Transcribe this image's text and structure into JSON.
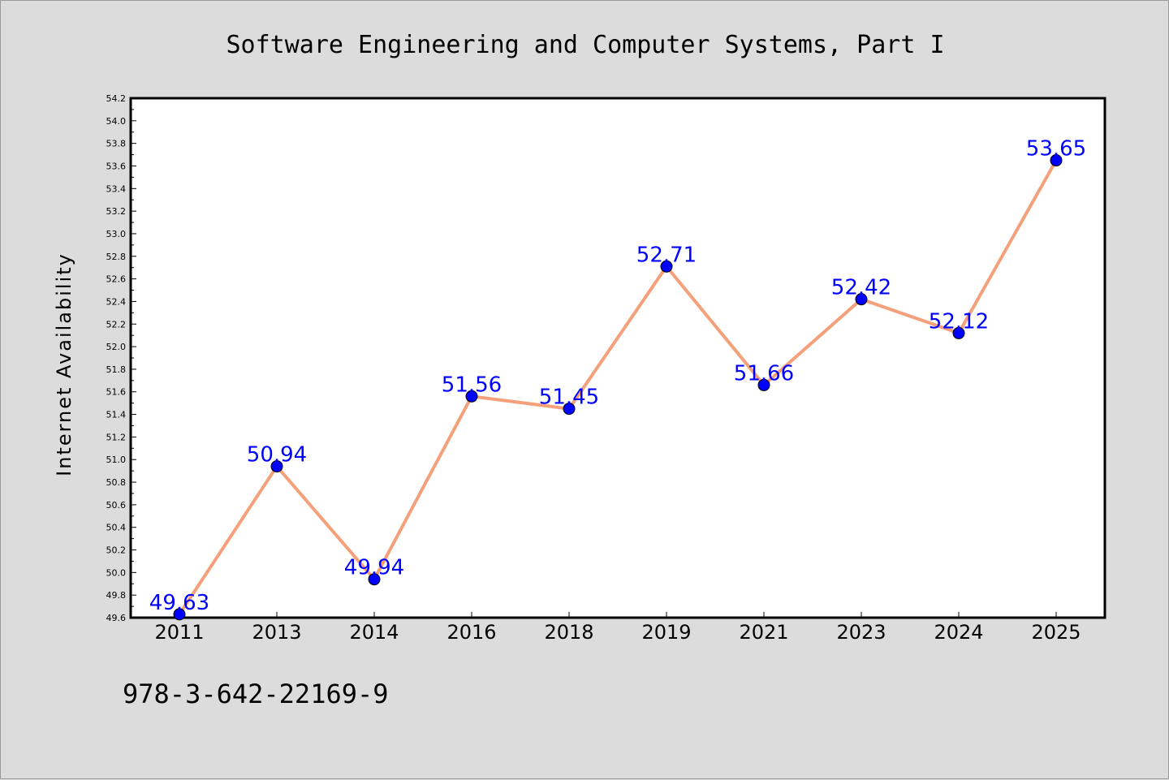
{
  "footer": {
    "isbn": "978-3-642-22169-9"
  },
  "colors": {
    "background": "#dcdcdc",
    "plot_background": "#ffffff",
    "line": "#f4a07a",
    "marker": "#0000ff",
    "data_label": "#0000ff"
  },
  "chart_data": {
    "type": "line",
    "title": "Software Engineering and Computer Systems, Part I",
    "xlabel": "",
    "ylabel": "Internet Availability",
    "categories": [
      "2011",
      "2013",
      "2014",
      "2016",
      "2018",
      "2019",
      "2021",
      "2023",
      "2024",
      "2025"
    ],
    "series": [
      {
        "values": [
          49.63,
          50.94,
          49.94,
          51.56,
          51.45,
          52.71,
          51.66,
          52.42,
          52.12,
          53.65
        ]
      }
    ],
    "data_labels": [
      "49.63",
      "50.94",
      "49.94",
      "51.56",
      "51.45",
      "52.71",
      "51.66",
      "52.42",
      "52.12",
      "53.65"
    ],
    "ylim": [
      49.6,
      54.2
    ],
    "yticks": [
      "49.6",
      "49.8",
      "50.0",
      "50.2",
      "50.4",
      "50.6",
      "50.8",
      "51.0",
      "51.2",
      "51.4",
      "51.6",
      "51.8",
      "52.0",
      "52.2",
      "52.4",
      "52.6",
      "52.8",
      "53.0",
      "53.2",
      "53.4",
      "53.6",
      "53.8",
      "54.0",
      "54.2"
    ],
    "grid": false,
    "legend": "none"
  }
}
